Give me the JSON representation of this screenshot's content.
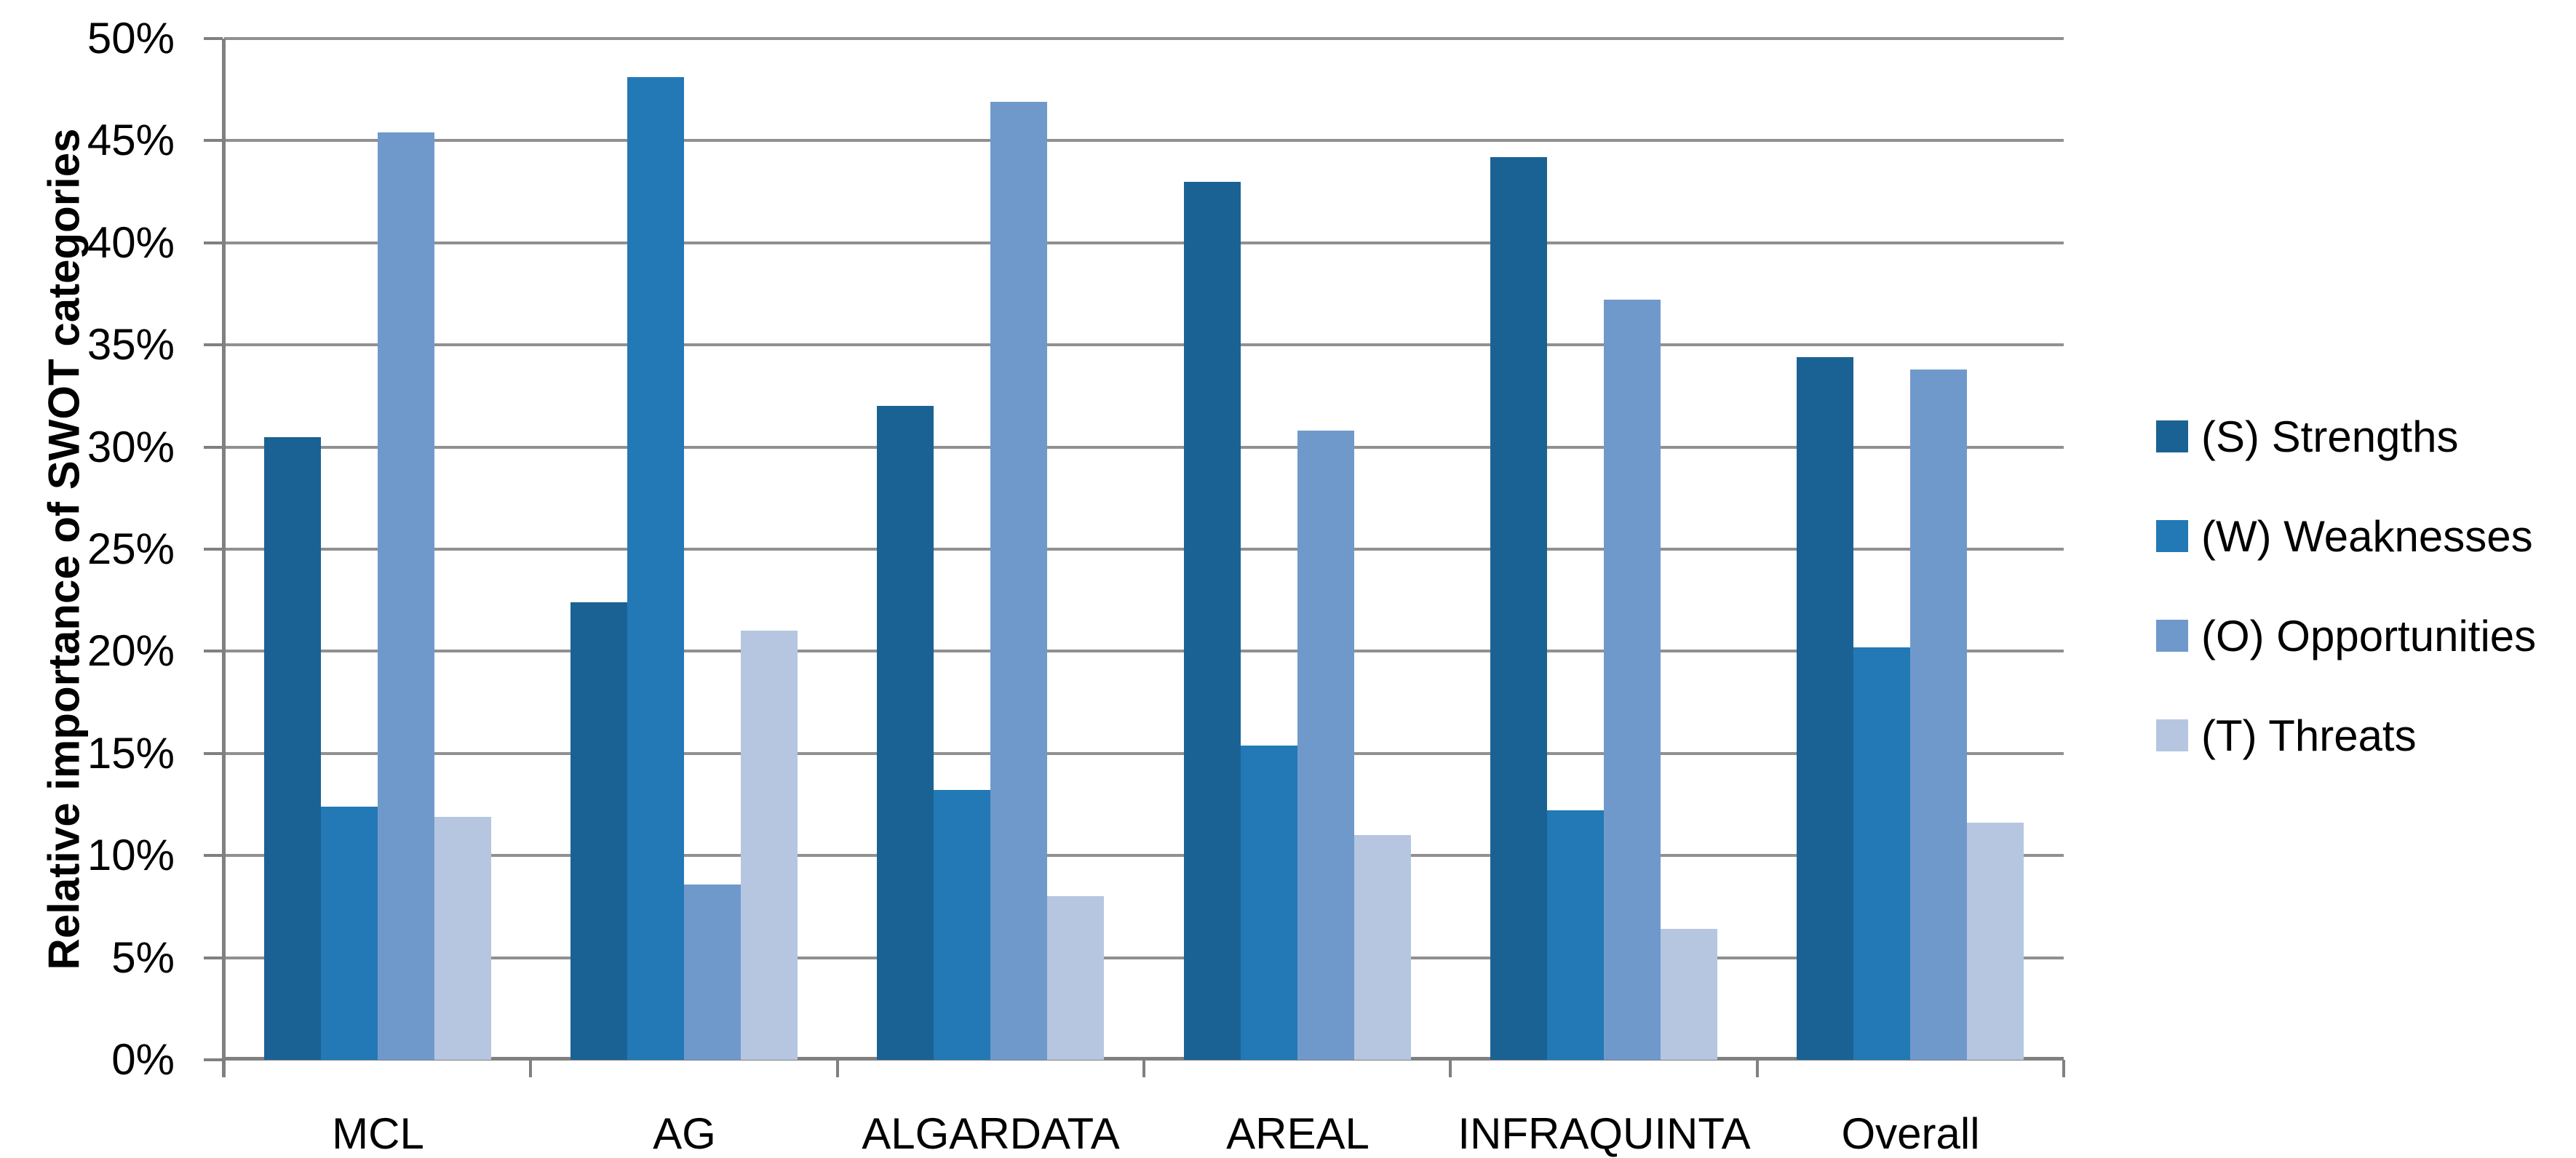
{
  "chart_data": {
    "type": "bar",
    "title": "",
    "xlabel": "",
    "ylabel": "Relative importance of SWOT categories",
    "categories": [
      "MCL",
      "AG",
      "ALGARDATA",
      "AREAL",
      "INFRAQUINTA",
      "Overall"
    ],
    "series": [
      {
        "name": "(S) Strengths",
        "color": "#1B6294",
        "values": [
          30.5,
          22.4,
          32.0,
          43.0,
          44.2,
          34.4
        ]
      },
      {
        "name": "(W) Weaknesses",
        "color": "#2279B5",
        "values": [
          12.4,
          48.1,
          13.2,
          15.4,
          12.2,
          20.2
        ]
      },
      {
        "name": "(O) Opportunities",
        "color": "#7099CB",
        "values": [
          45.4,
          8.6,
          46.9,
          30.8,
          37.2,
          33.8
        ]
      },
      {
        "name": "(T) Threats",
        "color": "#B6C6E1",
        "values": [
          11.9,
          21.0,
          8.0,
          11.0,
          6.4,
          11.6
        ]
      }
    ],
    "ylim": [
      0,
      50
    ],
    "ytick_step": 5,
    "ytick_labels": [
      "0%",
      "5%",
      "10%",
      "15%",
      "20%",
      "25%",
      "30%",
      "35%",
      "40%",
      "45%",
      "50%"
    ],
    "grid": "horizontal",
    "legend_position": "right"
  },
  "colors": {
    "background": "#FFFFFF",
    "gridline": "#909090",
    "axis": "#808080",
    "text": "#000000"
  }
}
